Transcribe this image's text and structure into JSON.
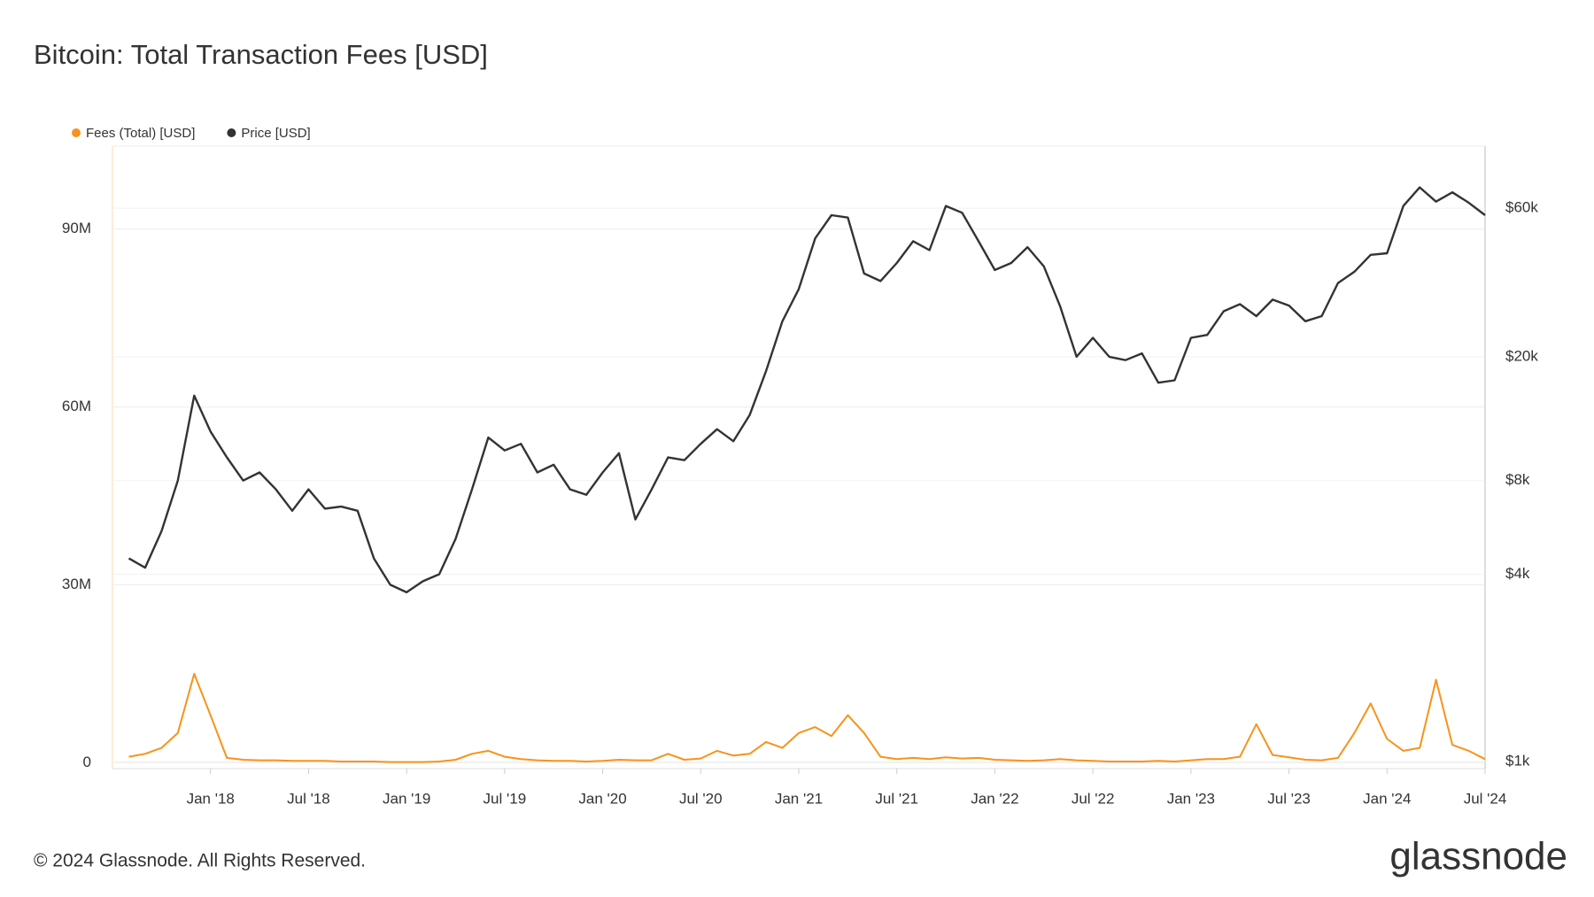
{
  "chart_data": {
    "type": "line",
    "title": "Bitcoin: Total Transaction Fees [USD]",
    "x": [
      "2017-08",
      "2017-09",
      "2017-10",
      "2017-11",
      "2017-12",
      "2018-01",
      "2018-02",
      "2018-03",
      "2018-04",
      "2018-05",
      "2018-06",
      "2018-07",
      "2018-08",
      "2018-09",
      "2018-10",
      "2018-11",
      "2018-12",
      "2019-01",
      "2019-02",
      "2019-03",
      "2019-04",
      "2019-05",
      "2019-06",
      "2019-07",
      "2019-08",
      "2019-09",
      "2019-10",
      "2019-11",
      "2019-12",
      "2020-01",
      "2020-02",
      "2020-03",
      "2020-04",
      "2020-05",
      "2020-06",
      "2020-07",
      "2020-08",
      "2020-09",
      "2020-10",
      "2020-11",
      "2020-12",
      "2021-01",
      "2021-02",
      "2021-03",
      "2021-04",
      "2021-05",
      "2021-06",
      "2021-07",
      "2021-08",
      "2021-09",
      "2021-10",
      "2021-11",
      "2021-12",
      "2022-01",
      "2022-02",
      "2022-03",
      "2022-04",
      "2022-05",
      "2022-06",
      "2022-07",
      "2022-08",
      "2022-09",
      "2022-10",
      "2022-11",
      "2022-12",
      "2023-01",
      "2023-02",
      "2023-03",
      "2023-04",
      "2023-05",
      "2023-06",
      "2023-07",
      "2023-08",
      "2023-09",
      "2023-10",
      "2023-11",
      "2023-12",
      "2024-01",
      "2024-02",
      "2024-03",
      "2024-04",
      "2024-05",
      "2024-06",
      "2024-07"
    ],
    "series": [
      {
        "name": "Fees (Total) [USD]",
        "color": "#f7931a",
        "axis": "y",
        "values": [
          1000000,
          1500000,
          2500000,
          5000000,
          15000000,
          8000000,
          800000,
          500000,
          400000,
          400000,
          300000,
          300000,
          300000,
          200000,
          200000,
          200000,
          100000,
          100000,
          100000,
          200000,
          500000,
          1500000,
          2000000,
          1000000,
          600000,
          400000,
          300000,
          300000,
          200000,
          300000,
          500000,
          400000,
          400000,
          1500000,
          500000,
          700000,
          2000000,
          1200000,
          1500000,
          3500000,
          2500000,
          5000000,
          6000000,
          4500000,
          8000000,
          5000000,
          1000000,
          600000,
          800000,
          600000,
          900000,
          700000,
          800000,
          500000,
          400000,
          300000,
          400000,
          600000,
          400000,
          300000,
          200000,
          200000,
          200000,
          300000,
          200000,
          400000,
          600000,
          600000,
          1000000,
          6500000,
          1300000,
          900000,
          500000,
          400000,
          800000,
          5000000,
          10000000,
          4000000,
          2000000,
          2500000,
          14000000,
          3000000,
          2000000,
          600000
        ]
      },
      {
        "name": "Price [USD]",
        "color": "#333333",
        "axis": "y2",
        "values": [
          4500,
          4200,
          5500,
          8000,
          15000,
          11500,
          9500,
          8000,
          8500,
          7500,
          6400,
          7500,
          6500,
          6600,
          6400,
          4500,
          3700,
          3500,
          3800,
          4000,
          5200,
          7500,
          11000,
          10000,
          10500,
          8500,
          9000,
          7500,
          7200,
          8500,
          9800,
          6000,
          7500,
          9500,
          9300,
          10500,
          11700,
          10700,
          13000,
          18000,
          26000,
          33000,
          48000,
          57000,
          56000,
          37000,
          35000,
          40000,
          47000,
          44000,
          61000,
          58000,
          47000,
          38000,
          40000,
          45000,
          39000,
          29000,
          20000,
          23000,
          20000,
          19500,
          20500,
          16500,
          16800,
          23000,
          23500,
          28000,
          29500,
          27000,
          30500,
          29200,
          26000,
          27000,
          34500,
          37500,
          42500,
          43000,
          61000,
          70000,
          63000,
          67500,
          62500,
          57000
        ]
      }
    ],
    "xlim": [
      "2017-07",
      "2024-07"
    ],
    "xticks": [
      {
        "value": "2018-01",
        "label": "Jan '18"
      },
      {
        "value": "2018-07",
        "label": "Jul '18"
      },
      {
        "value": "2019-01",
        "label": "Jan '19"
      },
      {
        "value": "2019-07",
        "label": "Jul '19"
      },
      {
        "value": "2020-01",
        "label": "Jan '20"
      },
      {
        "value": "2020-07",
        "label": "Jul '20"
      },
      {
        "value": "2021-01",
        "label": "Jan '21"
      },
      {
        "value": "2021-07",
        "label": "Jul '21"
      },
      {
        "value": "2022-01",
        "label": "Jan '22"
      },
      {
        "value": "2022-07",
        "label": "Jul '22"
      },
      {
        "value": "2023-01",
        "label": "Jan '23"
      },
      {
        "value": "2023-07",
        "label": "Jul '23"
      },
      {
        "value": "2024-01",
        "label": "Jan '24"
      },
      {
        "value": "2024-07",
        "label": "Jul '24"
      }
    ],
    "ylim": [
      -1000000,
      104000000
    ],
    "yticks": [
      0,
      {
        "value": 30000000,
        "label": "30M"
      },
      {
        "value": 60000000,
        "label": "60M"
      },
      {
        "value": 90000000,
        "label": "90M"
      }
    ],
    "y2lim": [
      950,
      95000
    ],
    "y2scale": "log",
    "y2ticks": [
      {
        "value": 1000,
        "label": "$1k"
      },
      {
        "value": 4000,
        "label": "$4k"
      },
      {
        "value": 8000,
        "label": "$8k"
      },
      {
        "value": 20000,
        "label": "$20k"
      },
      {
        "value": 60000,
        "label": "$60k"
      }
    ],
    "grid": true
  },
  "footer": {
    "copyright": "© 2024 Glassnode. All Rights Reserved.",
    "brand": "glassnode"
  }
}
